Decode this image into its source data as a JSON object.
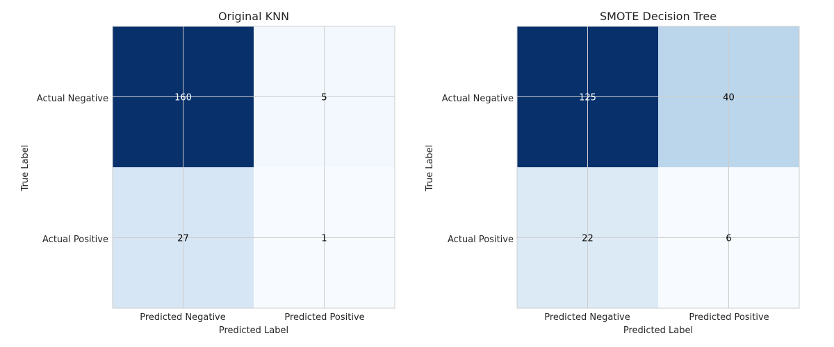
{
  "chart_data": [
    {
      "type": "heatmap",
      "title": "Original KNN",
      "xlabel": "Predicted Label",
      "ylabel": "True Label",
      "x_categories": [
        "Predicted Negative",
        "Predicted Positive"
      ],
      "y_categories": [
        "Actual Negative",
        "Actual Positive"
      ],
      "values": [
        [
          160,
          5
        ],
        [
          27,
          1
        ]
      ],
      "colormap": "Blues",
      "grid": true
    },
    {
      "type": "heatmap",
      "title": "SMOTE Decision Tree",
      "xlabel": "Predicted Label",
      "ylabel": "True Label",
      "x_categories": [
        "Predicted Negative",
        "Predicted Positive"
      ],
      "y_categories": [
        "Actual Negative",
        "Actual Positive"
      ],
      "values": [
        [
          125,
          40
        ],
        [
          22,
          6
        ]
      ],
      "colormap": "Blues",
      "grid": true
    }
  ]
}
